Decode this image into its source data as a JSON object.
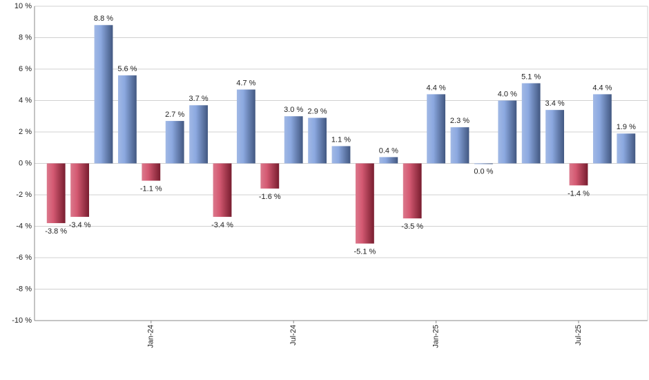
{
  "chart_data": {
    "type": "bar",
    "categories": [
      null,
      null,
      null,
      null,
      "Jan-24",
      null,
      null,
      null,
      null,
      null,
      "Jul-24",
      null,
      null,
      null,
      null,
      null,
      "Jan-25",
      null,
      null,
      null,
      null,
      null,
      "Jul-25",
      null,
      null
    ],
    "values": [
      -3.8,
      -3.4,
      8.8,
      5.6,
      -1.1,
      2.7,
      3.7,
      -3.4,
      4.7,
      -1.6,
      3.0,
      2.9,
      1.1,
      -5.1,
      0.4,
      -3.5,
      4.4,
      2.3,
      0.0,
      4.0,
      5.1,
      3.4,
      -1.4,
      4.4,
      1.9
    ],
    "value_labels": [
      "-3.8 %",
      "-3.4 %",
      "8.8 %",
      "5.6 %",
      "-1.1 %",
      "2.7 %",
      "3.7 %",
      "-3.4 %",
      "4.7 %",
      "-1.6 %",
      "3.0 %",
      "2.9 %",
      "1.1 %",
      "-5.1 %",
      "0.4 %",
      "-3.5 %",
      "4.4 %",
      "2.3 %",
      "0.0 %",
      "4.0 %",
      "5.1 %",
      "3.4 %",
      "-1.4 %",
      "4.4 %",
      "1.9 %"
    ],
    "colors": {
      "positive": "#6f93d8",
      "negative": "#c9304f"
    },
    "ylim": [
      -10,
      10
    ],
    "yticks": [
      {
        "value": -10,
        "label": "-10 %"
      },
      {
        "value": -8,
        "label": "-8 %"
      },
      {
        "value": -6,
        "label": "-6 %"
      },
      {
        "value": -4,
        "label": "-4 %"
      },
      {
        "value": -2,
        "label": "-2 %"
      },
      {
        "value": 0,
        "label": "0 %"
      },
      {
        "value": 2,
        "label": "2 %"
      },
      {
        "value": 4,
        "label": "4 %"
      },
      {
        "value": 6,
        "label": "6 %"
      },
      {
        "value": 8,
        "label": "8 %"
      },
      {
        "value": 10,
        "label": "10 %"
      }
    ],
    "grid": true
  }
}
